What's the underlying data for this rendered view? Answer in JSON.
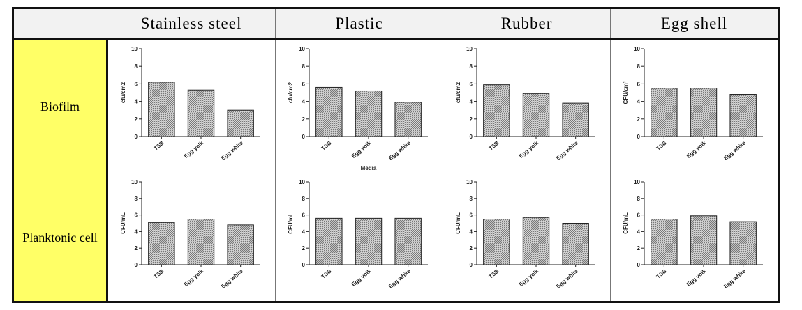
{
  "table": {
    "columns": [
      "Stainless steel",
      "Plastic",
      "Rubber",
      "Egg shell"
    ],
    "rows": [
      "Biofilm",
      "Planktonic cell"
    ]
  },
  "chart_data": [
    {
      "type": "bar",
      "ylabel": "cfu/cm2",
      "categories": [
        "TSB",
        "Egg yolk",
        "Egg white"
      ],
      "values": [
        6.2,
        5.3,
        3.0
      ],
      "ylim": [
        0,
        10
      ],
      "yticks": [
        0,
        2,
        4,
        6,
        8,
        10
      ]
    },
    {
      "type": "bar",
      "ylabel": "cfu/cm2",
      "xlabel": "Media",
      "categories": [
        "TSB",
        "Egg yolk",
        "Egg white"
      ],
      "values": [
        5.6,
        5.2,
        3.9
      ],
      "ylim": [
        0,
        10
      ],
      "yticks": [
        0,
        2,
        4,
        6,
        8,
        10
      ]
    },
    {
      "type": "bar",
      "ylabel": "cfu/cm2",
      "categories": [
        "TSB",
        "Egg yolk",
        "Egg white"
      ],
      "values": [
        5.9,
        4.9,
        3.8
      ],
      "ylim": [
        0,
        10
      ],
      "yticks": [
        0,
        2,
        4,
        6,
        8,
        10
      ]
    },
    {
      "type": "bar",
      "ylabel": "CFU/cm²",
      "categories": [
        "TSB",
        "Egg yolk",
        "Egg white"
      ],
      "values": [
        5.5,
        5.5,
        4.8
      ],
      "ylim": [
        0,
        10
      ],
      "yticks": [
        0,
        2,
        4,
        6,
        8,
        10
      ]
    },
    {
      "type": "bar",
      "ylabel": "CFU/mL",
      "categories": [
        "TSB",
        "Egg yolk",
        "Egg white"
      ],
      "values": [
        5.1,
        5.5,
        4.8
      ],
      "ylim": [
        0,
        10
      ],
      "yticks": [
        0,
        2,
        4,
        6,
        8,
        10
      ]
    },
    {
      "type": "bar",
      "ylabel": "CFU/mL",
      "categories": [
        "TSB",
        "Egg yolk",
        "Egg white"
      ],
      "values": [
        5.6,
        5.6,
        5.6
      ],
      "ylim": [
        0,
        10
      ],
      "yticks": [
        0,
        2,
        4,
        6,
        8,
        10
      ]
    },
    {
      "type": "bar",
      "ylabel": "CFU/mL",
      "categories": [
        "TSB",
        "Egg yolk",
        "Egg white"
      ],
      "values": [
        5.5,
        5.7,
        5.0
      ],
      "ylim": [
        0,
        10
      ],
      "yticks": [
        0,
        2,
        4,
        6,
        8,
        10
      ]
    },
    {
      "type": "bar",
      "ylabel": "CFU/mL",
      "categories": [
        "TSB",
        "Egg yolk",
        "Egg white"
      ],
      "values": [
        5.5,
        5.9,
        5.2
      ],
      "ylim": [
        0,
        10
      ],
      "yticks": [
        0,
        2,
        4,
        6,
        8,
        10
      ]
    }
  ]
}
